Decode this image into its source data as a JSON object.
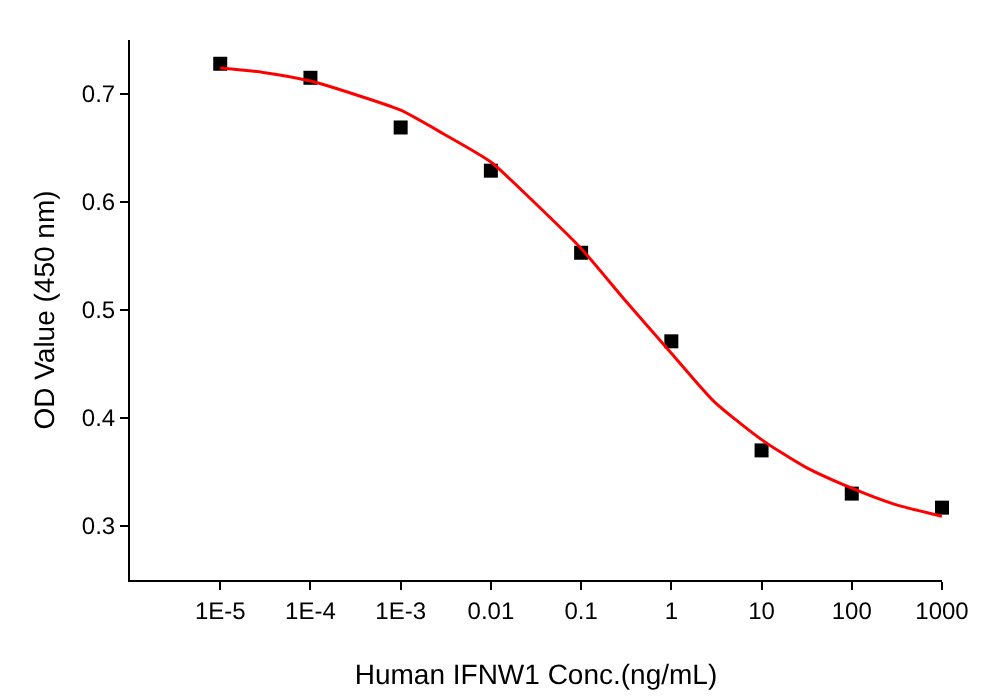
{
  "chart_data": {
    "type": "scatter",
    "xlabel": "Human IFNW1 Conc.(ng/mL)",
    "ylabel": "OD Value (450 nm)",
    "log": "x",
    "grid": false,
    "marker": "square",
    "x": [
      1e-05,
      0.0001,
      0.001,
      0.01,
      0.1,
      1,
      10,
      100,
      1000
    ],
    "xlim": [
      1e-06,
      1000
    ],
    "xticks": [
      {
        "value": 1e-05,
        "label": "1E-5"
      },
      {
        "value": 0.0001,
        "label": "1E-4"
      },
      {
        "value": 0.001,
        "label": "1E-3"
      },
      0.01,
      0.1,
      1,
      10,
      100,
      1000
    ],
    "ylim": [
      0.25,
      0.75
    ],
    "yticks": [
      0.3,
      0.4,
      0.5,
      0.6,
      0.7
    ],
    "series": [
      {
        "color": "#000000",
        "values": [
          0.728,
          0.715,
          0.669,
          0.629,
          0.553,
          0.471,
          0.37,
          0.33,
          0.317
        ]
      },
      {
        "type": "line",
        "color": "#ff0000",
        "line_style": "solid",
        "marker": "none",
        "x": [
          1e-05,
          3e-05,
          0.0001,
          0.0003,
          0.001,
          0.003,
          0.01,
          0.03,
          0.1,
          0.3,
          1,
          3,
          10,
          30,
          100,
          300,
          1000
        ],
        "values": [
          0.724,
          0.72,
          0.712,
          0.7,
          0.685,
          0.663,
          0.637,
          0.6,
          0.557,
          0.51,
          0.46,
          0.415,
          0.38,
          0.355,
          0.335,
          0.32,
          0.309
        ]
      }
    ]
  }
}
